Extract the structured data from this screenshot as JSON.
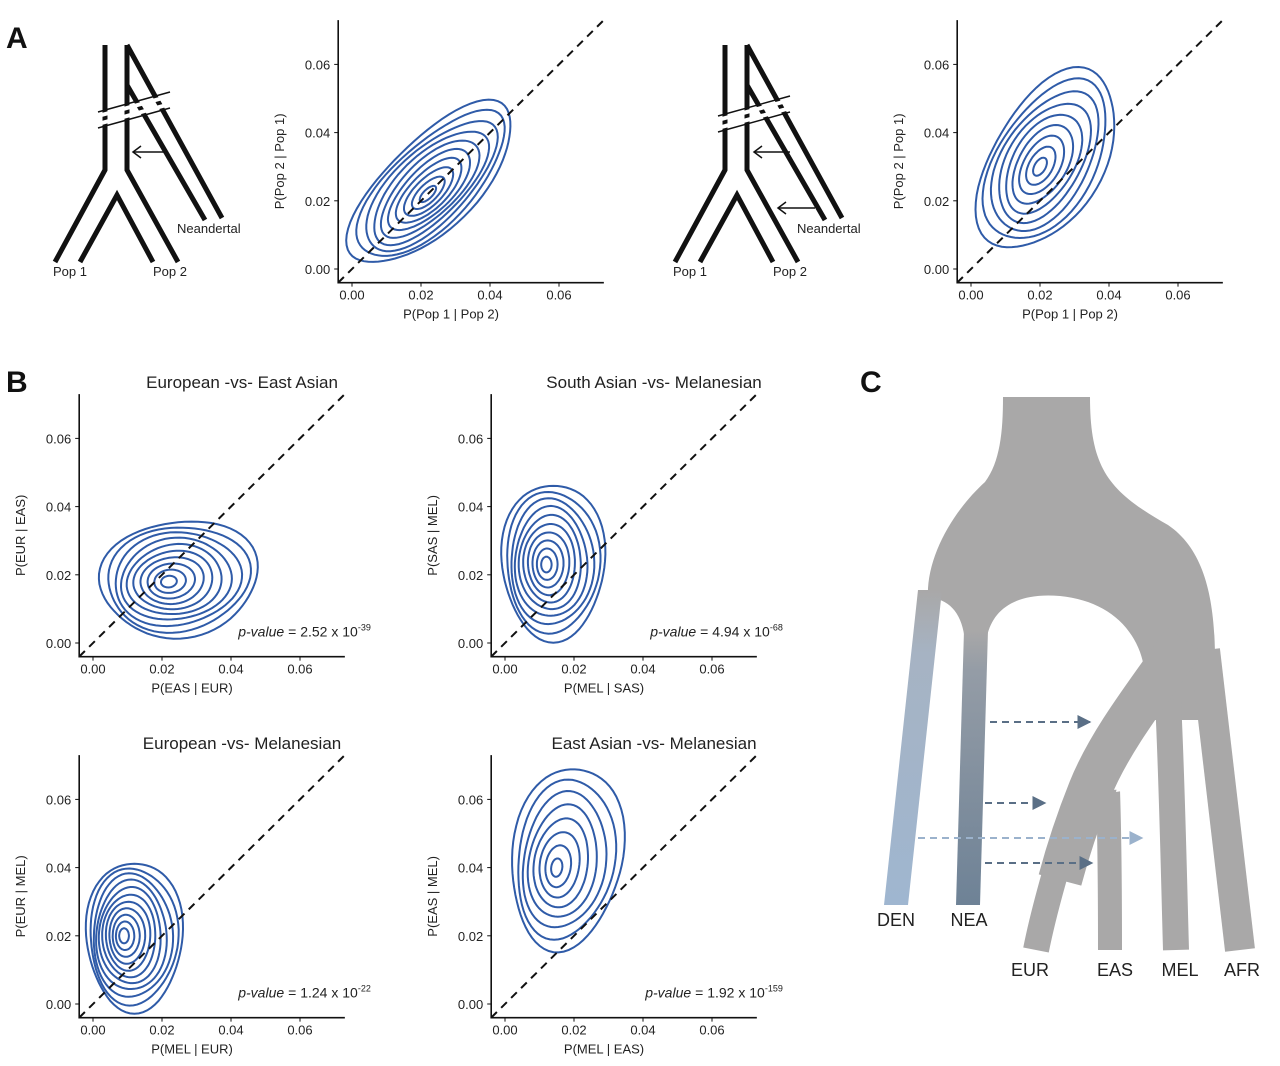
{
  "panel_labels": [
    "A",
    "B",
    "C"
  ],
  "diagram_a1": {
    "pop1": "Pop 1",
    "pop2": "Pop 2",
    "archaic": "Neandertal"
  },
  "diagram_a2": {
    "pop1": "Pop 1",
    "pop2": "Pop 2",
    "archaic": "Neandertal"
  },
  "diagram_c": {
    "labels": [
      "DEN",
      "NEA",
      "EUR",
      "EAS",
      "MEL",
      "AFR"
    ]
  },
  "chart_data": [
    {
      "type": "contour",
      "xlabel": "P(Pop 1 | Pop 2)",
      "ylabel": "P(Pop 2 | Pop 1)",
      "xlim": [
        -0.004,
        0.073
      ],
      "ylim": [
        -0.004,
        0.073
      ],
      "xticks": [
        {
          "value": 0,
          "label": "0.00"
        },
        {
          "value": 0.02,
          "label": "0.02"
        },
        {
          "value": 0.04,
          "label": "0.04"
        },
        {
          "value": 0.06,
          "label": "0.06"
        }
      ],
      "yticks": [
        {
          "value": 0,
          "label": "0.00"
        },
        {
          "value": 0.02,
          "label": "0.02"
        },
        {
          "value": 0.04,
          "label": "0.04"
        },
        {
          "value": 0.06,
          "label": "0.06"
        }
      ],
      "contour": {
        "cx": 0.023,
        "cy": 0.025,
        "rx": 0.031,
        "ry": 0.013,
        "angle": 45,
        "peak_x": 0.022,
        "peak_y": 0.022,
        "levels": 10
      },
      "color": "#2f5ba8",
      "diagonal": true
    },
    {
      "type": "contour",
      "xlabel": "P(Pop 1 | Pop 2)",
      "ylabel": "P(Pop 2 | Pop 1)",
      "xlim": [
        -0.004,
        0.073
      ],
      "ylim": [
        -0.004,
        0.073
      ],
      "xticks": [
        {
          "value": 0,
          "label": "0.00"
        },
        {
          "value": 0.02,
          "label": "0.02"
        },
        {
          "value": 0.04,
          "label": "0.04"
        },
        {
          "value": 0.06,
          "label": "0.06"
        }
      ],
      "yticks": [
        {
          "value": 0,
          "label": "0.00"
        },
        {
          "value": 0.02,
          "label": "0.02"
        },
        {
          "value": 0.04,
          "label": "0.04"
        },
        {
          "value": 0.06,
          "label": "0.06"
        }
      ],
      "contour": {
        "cx": 0.022,
        "cy": 0.032,
        "rx": 0.029,
        "ry": 0.016,
        "angle": 60,
        "peak_x": 0.02,
        "peak_y": 0.03,
        "levels": 9
      },
      "color": "#2f5ba8",
      "diagonal": true
    },
    {
      "type": "contour",
      "title": "European -vs- East Asian",
      "xlabel": "P(EAS | EUR)",
      "ylabel": "P(EUR | EAS)",
      "xlim": [
        -0.004,
        0.073
      ],
      "ylim": [
        -0.004,
        0.073
      ],
      "xticks": [
        {
          "value": 0,
          "label": "0.00"
        },
        {
          "value": 0.02,
          "label": "0.02"
        },
        {
          "value": 0.04,
          "label": "0.04"
        },
        {
          "value": 0.06,
          "label": "0.06"
        }
      ],
      "yticks": [
        {
          "value": 0,
          "label": "0.00"
        },
        {
          "value": 0.02,
          "label": "0.02"
        },
        {
          "value": 0.04,
          "label": "0.04"
        },
        {
          "value": 0.06,
          "label": "0.06"
        }
      ],
      "contour": {
        "cx": 0.025,
        "cy": 0.019,
        "rx": 0.023,
        "ry": 0.017,
        "angle": 8,
        "peak_x": 0.022,
        "peak_y": 0.018,
        "levels": 10
      },
      "color": "#2f5ba8",
      "diagonal": true,
      "annotation": {
        "label": "p-value",
        "text": "= 2.52 x 10",
        "exponent": "-39"
      }
    },
    {
      "type": "contour",
      "title": "South Asian -vs- Melanesian",
      "xlabel": "P(MEL | SAS)",
      "ylabel": "P(SAS | MEL)",
      "xlim": [
        -0.004,
        0.073
      ],
      "ylim": [
        -0.004,
        0.073
      ],
      "xticks": [
        {
          "value": 0,
          "label": "0.00"
        },
        {
          "value": 0.02,
          "label": "0.02"
        },
        {
          "value": 0.04,
          "label": "0.04"
        },
        {
          "value": 0.06,
          "label": "0.06"
        }
      ],
      "yticks": [
        {
          "value": 0,
          "label": "0.00"
        },
        {
          "value": 0.02,
          "label": "0.02"
        },
        {
          "value": 0.04,
          "label": "0.04"
        },
        {
          "value": 0.06,
          "label": "0.06"
        }
      ],
      "contour": {
        "cx": 0.014,
        "cy": 0.024,
        "rx": 0.015,
        "ry": 0.023,
        "angle": 0,
        "peak_x": 0.012,
        "peak_y": 0.023,
        "levels": 10
      },
      "color": "#2f5ba8",
      "diagonal": true,
      "annotation": {
        "label": "p-value",
        "text": "= 4.94 x 10",
        "exponent": "-68"
      }
    },
    {
      "type": "contour",
      "title": "European -vs- Melanesian",
      "xlabel": "P(MEL | EUR)",
      "ylabel": "P(EUR | MEL)",
      "xlim": [
        -0.004,
        0.073
      ],
      "ylim": [
        -0.004,
        0.073
      ],
      "xticks": [
        {
          "value": 0,
          "label": "0.00"
        },
        {
          "value": 0.02,
          "label": "0.02"
        },
        {
          "value": 0.04,
          "label": "0.04"
        },
        {
          "value": 0.06,
          "label": "0.06"
        }
      ],
      "yticks": [
        {
          "value": 0,
          "label": "0.00"
        },
        {
          "value": 0.02,
          "label": "0.02"
        },
        {
          "value": 0.04,
          "label": "0.04"
        },
        {
          "value": 0.06,
          "label": "0.06"
        }
      ],
      "contour": {
        "cx": 0.012,
        "cy": 0.02,
        "rx": 0.014,
        "ry": 0.022,
        "angle": 0,
        "peak_x": 0.009,
        "peak_y": 0.02,
        "levels": 11
      },
      "color": "#2f5ba8",
      "diagonal": true,
      "annotation": {
        "label": "p-value",
        "text": "= 1.24 x 10",
        "exponent": "-22"
      }
    },
    {
      "type": "contour",
      "title": "East Asian -vs- Melanesian",
      "xlabel": "P(MEL | EAS)",
      "ylabel": "P(EAS | MEL)",
      "xlim": [
        -0.004,
        0.073
      ],
      "ylim": [
        -0.004,
        0.073
      ],
      "xticks": [
        {
          "value": 0,
          "label": "0.00"
        },
        {
          "value": 0.02,
          "label": "0.02"
        },
        {
          "value": 0.04,
          "label": "0.04"
        },
        {
          "value": 0.06,
          "label": "0.06"
        }
      ],
      "yticks": [
        {
          "value": 0,
          "label": "0.00"
        },
        {
          "value": 0.02,
          "label": "0.02"
        },
        {
          "value": 0.04,
          "label": "0.04"
        },
        {
          "value": 0.06,
          "label": "0.06"
        }
      ],
      "contour": {
        "cx": 0.018,
        "cy": 0.043,
        "rx": 0.016,
        "ry": 0.027,
        "angle": -8,
        "peak_x": 0.015,
        "peak_y": 0.04,
        "levels": 8
      },
      "color": "#2f5ba8",
      "diagonal": true,
      "annotation": {
        "label": "p-value",
        "text": "= 1.92 x 10",
        "exponent": "-159"
      }
    }
  ]
}
